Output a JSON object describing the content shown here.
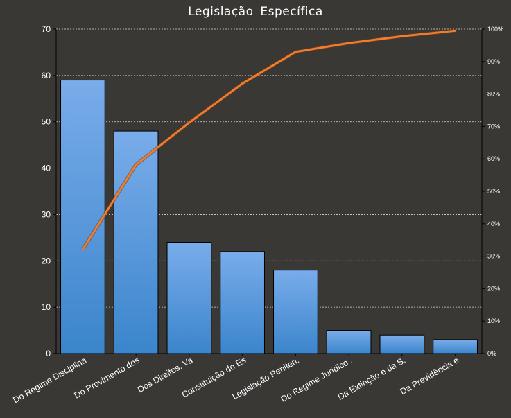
{
  "chart_data": {
    "type": "bar",
    "title": "Legislação  Específica",
    "categories": [
      "Do Regime Disciplina",
      "Do Provimento dos",
      "Dos Direitos, Va",
      "Constituição do Es",
      "Legislação Peniten.",
      "Do Regime Jurídico .",
      "Da Extinção e da S.",
      "Da Previdência e"
    ],
    "series": [
      {
        "values": [
          59,
          48,
          24,
          22,
          18,
          5,
          4,
          3
        ],
        "axis": "left",
        "kind": "bar"
      },
      {
        "values": [
          32.1,
          58.2,
          71.2,
          83.2,
          93.0,
          95.7,
          97.8,
          99.5
        ],
        "axis": "right",
        "kind": "line",
        "unit": "%"
      }
    ],
    "ylim": [
      0,
      70
    ],
    "y_ticks": [
      "0",
      "10",
      "20",
      "30",
      "40",
      "50",
      "60",
      "70"
    ],
    "y2lim": [
      0,
      100
    ],
    "y2_ticks": [
      "0%",
      "10%",
      "20%",
      "30%",
      "40%",
      "50%",
      "60%",
      "70%",
      "80%",
      "90%",
      "100%"
    ],
    "grid": true,
    "legend": "none",
    "colors": {
      "bar": "#4a90d8",
      "line": "#ee7d31",
      "background": "#3a3835",
      "grid": "#d8d8d8"
    }
  }
}
